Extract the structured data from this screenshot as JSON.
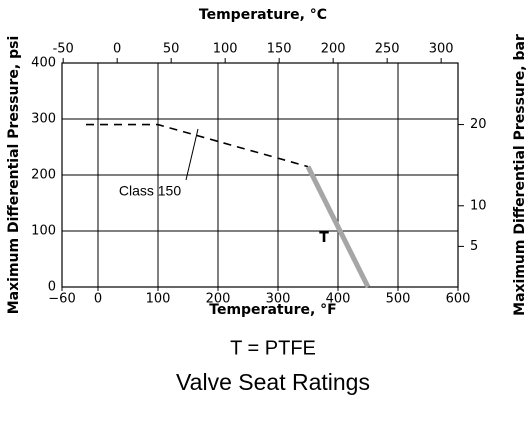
{
  "chart_data": {
    "type": "line",
    "title": "Valve Seat Ratings",
    "subtitle": "T = PTFE",
    "x_label": "Temperature, °F",
    "x2_label": "Temperature, °C",
    "y_label": "Maximum Differential Pressure, psi",
    "y2_label": "Maximum Differential Pressure, bar",
    "xlim": [
      -60,
      600
    ],
    "xticks": [
      {
        "value": -60,
        "label": "−60"
      },
      0,
      100,
      200,
      300,
      400,
      500,
      600
    ],
    "x2lim": [
      -51.1,
      315.6
    ],
    "x2ticks": [
      -50,
      0,
      50,
      100,
      150,
      200,
      250,
      300
    ],
    "ylim": [
      0,
      400
    ],
    "yticks": [
      0,
      100,
      200,
      300,
      400
    ],
    "y2lim": [
      0,
      27.58
    ],
    "y2ticks": [
      5,
      10,
      20
    ],
    "grid": true,
    "series": [
      {
        "name": "Class 150",
        "color": "#000000",
        "dash": true,
        "x": [
          -20,
          100,
          350
        ],
        "values": [
          290,
          290,
          215
        ]
      },
      {
        "name": "T",
        "color": "#a6a6a6",
        "dash": false,
        "x": [
          350,
          450
        ],
        "values": [
          215,
          0
        ]
      }
    ]
  }
}
